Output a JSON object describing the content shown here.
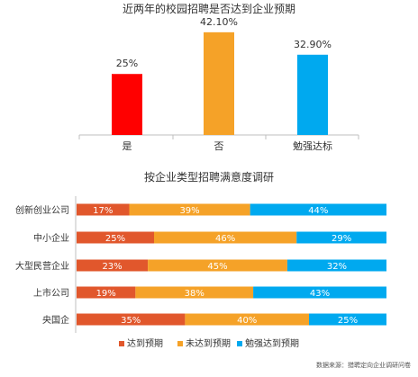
{
  "chart_data": [
    {
      "type": "bar",
      "title": "近两年的校园招聘是否达到企业预期",
      "categories": [
        "是",
        "否",
        "勉强达标"
      ],
      "values": [
        25,
        42.1,
        32.9
      ],
      "value_labels": [
        "25%",
        "42.10%",
        "32.90%"
      ],
      "colors": [
        "#ff0000",
        "#f5a228",
        "#00a9ef"
      ],
      "ylim": [
        0,
        45
      ]
    },
    {
      "type": "bar",
      "orientation": "horizontal-stacked-100",
      "title": "按企业类型招聘满意度调研",
      "categories": [
        "创新创业公司",
        "中小企业",
        "大型民营企业",
        "上市公司",
        "央国企"
      ],
      "series": [
        {
          "name": "达到预期",
          "color": "#e1572c",
          "values": [
            17,
            25,
            23,
            19,
            35
          ],
          "labels": [
            "17%",
            "25%",
            "23%",
            "19%",
            "35%"
          ]
        },
        {
          "name": "未达到预期",
          "color": "#f5a228",
          "values": [
            39,
            46,
            45,
            38,
            40
          ],
          "labels": [
            "39%",
            "46%",
            "45%",
            "38%",
            "40%"
          ]
        },
        {
          "name": "勉强达到预期",
          "color": "#00a9ef",
          "values": [
            44,
            29,
            32,
            43,
            25
          ],
          "labels": [
            "44%",
            "29%",
            "32%",
            "43%",
            "25%"
          ]
        }
      ],
      "legend_position": "bottom"
    }
  ],
  "source_note": "数据来源：猎聘定向企业调研问卷"
}
